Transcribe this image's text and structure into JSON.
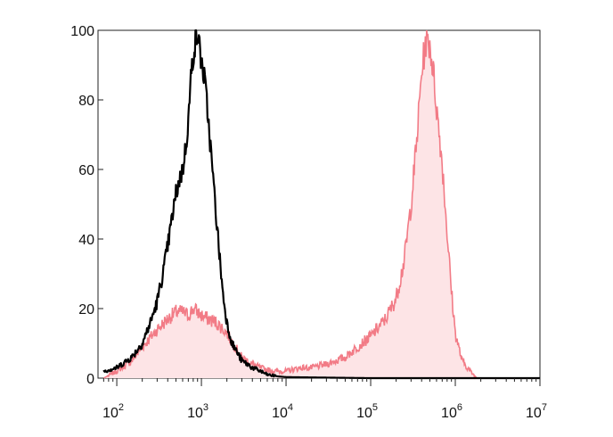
{
  "chart_data": {
    "type": "area",
    "title": "",
    "xlabel": "",
    "ylabel": "",
    "x_scale": "log",
    "xlim": [
      60,
      10000000
    ],
    "ylim": [
      0,
      100
    ],
    "x_ticks": [
      {
        "value": 100,
        "base": "10",
        "exp": "2"
      },
      {
        "value": 1000,
        "base": "10",
        "exp": "3"
      },
      {
        "value": 10000,
        "base": "10",
        "exp": "4"
      },
      {
        "value": 100000,
        "base": "10",
        "exp": "5"
      },
      {
        "value": 1000000,
        "base": "10",
        "exp": "6"
      },
      {
        "value": 10000000,
        "base": "10",
        "exp": "7"
      }
    ],
    "y_ticks": [
      {
        "value": 0,
        "label": "0"
      },
      {
        "value": 20,
        "label": "20"
      },
      {
        "value": 40,
        "label": "40"
      },
      {
        "value": 60,
        "label": "60"
      },
      {
        "value": 80,
        "label": "80"
      },
      {
        "value": 100,
        "label": "100"
      }
    ],
    "grid": false,
    "legend": "none",
    "series": [
      {
        "style": "filled",
        "line_color": "#f27b86",
        "fill_color": "#fde4e6",
        "x": [
          70,
          100,
          150,
          200,
          300,
          400,
          500,
          600,
          700,
          800,
          900,
          1000,
          1200,
          1500,
          2000,
          2500,
          3000,
          4000,
          5000,
          7000,
          10000,
          15000,
          20000,
          30000,
          50000,
          70000,
          100000,
          150000,
          200000,
          250000,
          300000,
          350000,
          400000,
          450000,
          500000,
          550000,
          600000,
          700000,
          800000,
          900000,
          1000000,
          1200000,
          1500000,
          1800000,
          2000000
        ],
        "y": [
          0,
          2,
          5,
          9,
          14,
          17,
          19,
          19,
          18,
          20,
          19,
          18,
          17,
          16,
          13,
          9,
          6,
          4,
          3,
          2,
          2,
          3,
          3,
          4,
          6,
          9,
          12,
          17,
          23,
          34,
          50,
          68,
          88,
          97,
          96,
          88,
          78,
          62,
          42,
          25,
          13,
          5,
          2,
          0,
          0
        ]
      },
      {
        "style": "line",
        "line_color": "#000000",
        "x": [
          70,
          100,
          150,
          200,
          250,
          300,
          350,
          400,
          450,
          500,
          550,
          600,
          650,
          700,
          750,
          800,
          850,
          900,
          950,
          1000,
          1100,
          1200,
          1400,
          1600,
          1800,
          2000,
          2300,
          2700,
          3000,
          3500,
          4000,
          5000,
          6000,
          8000,
          10000,
          20000,
          100000,
          1000000,
          10000000
        ],
        "y": [
          2,
          3,
          6,
          10,
          16,
          22,
          30,
          38,
          46,
          53,
          57,
          60,
          66,
          74,
          86,
          93,
          97,
          99,
          95,
          91,
          85,
          75,
          55,
          38,
          24,
          16,
          10,
          7,
          5,
          4,
          3,
          2,
          1,
          0.5,
          0.3,
          0.2,
          0,
          0,
          0
        ]
      }
    ]
  }
}
